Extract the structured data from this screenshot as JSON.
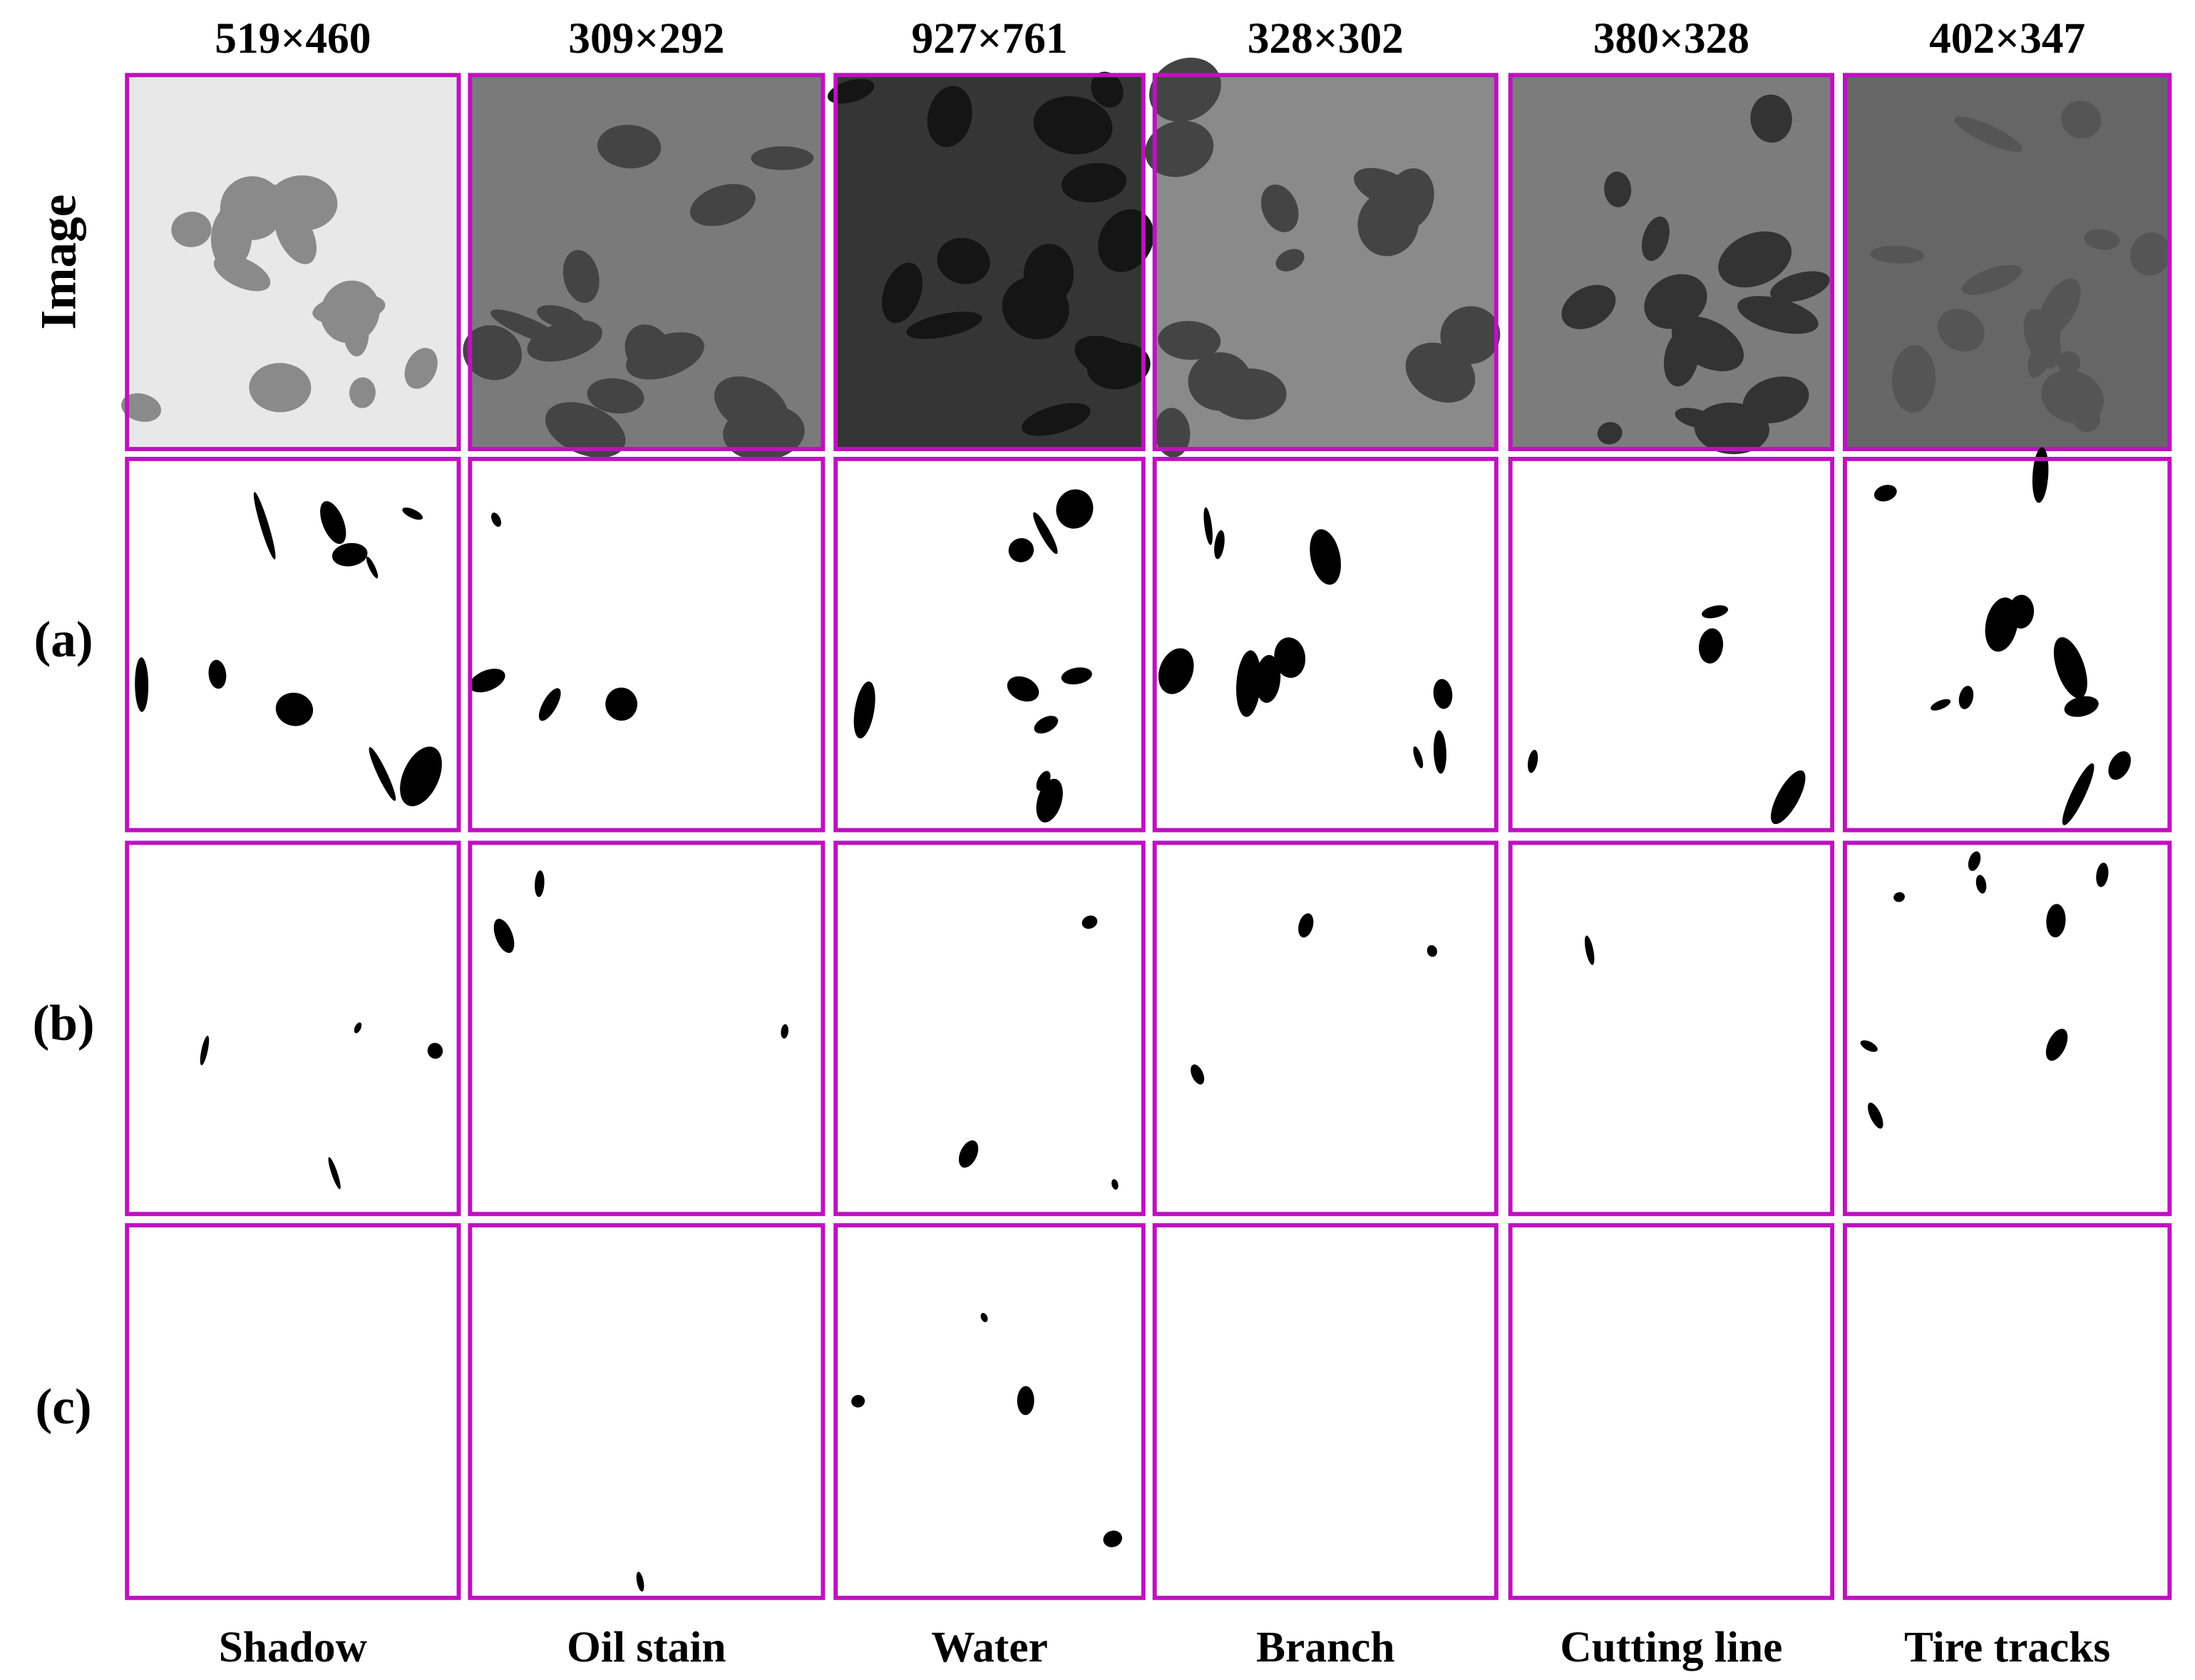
{
  "columns": [
    {
      "size": "519×460",
      "label": "Shadow"
    },
    {
      "size": "309×292",
      "label": "Oil stain"
    },
    {
      "size": "927×761",
      "label": "Water"
    },
    {
      "size": "328×302",
      "label": "Branch"
    },
    {
      "size": "380×328",
      "label": "Cutting line"
    },
    {
      "size": "402×347",
      "label": "Tire tracks"
    }
  ],
  "rows": [
    "Image",
    "(a)",
    "(b)",
    "(c)"
  ]
}
